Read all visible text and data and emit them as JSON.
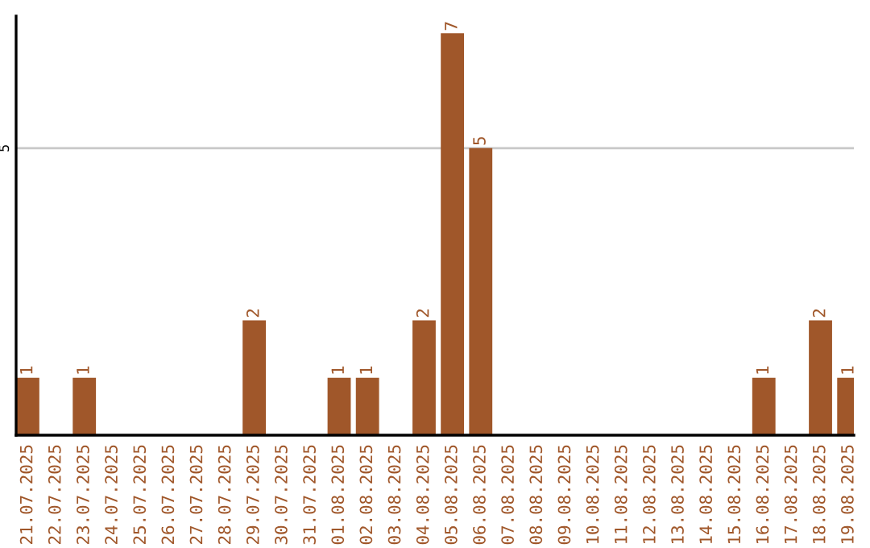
{
  "chart_data": {
    "type": "bar",
    "categories": [
      "21.07.2025",
      "22.07.2025",
      "23.07.2025",
      "24.07.2025",
      "25.07.2025",
      "26.07.2025",
      "27.07.2025",
      "28.07.2025",
      "29.07.2025",
      "30.07.2025",
      "31.07.2025",
      "01.08.2025",
      "02.08.2025",
      "03.08.2025",
      "04.08.2025",
      "05.08.2025",
      "06.08.2025",
      "07.08.2025",
      "08.08.2025",
      "09.08.2025",
      "10.08.2025",
      "11.08.2025",
      "12.08.2025",
      "13.08.2025",
      "14.08.2025",
      "15.08.2025",
      "16.08.2025",
      "17.08.2025",
      "18.08.2025",
      "19.08.2025"
    ],
    "values": [
      1,
      0,
      1,
      0,
      0,
      0,
      0,
      0,
      2,
      0,
      0,
      1,
      1,
      0,
      2,
      7,
      5,
      0,
      0,
      0,
      0,
      0,
      0,
      0,
      0,
      0,
      1,
      0,
      2,
      1
    ],
    "value_labels": [
      "1",
      null,
      "1",
      null,
      null,
      null,
      null,
      null,
      "2",
      null,
      null,
      "1",
      "1",
      null,
      "2",
      "7",
      "5",
      null,
      null,
      null,
      null,
      null,
      null,
      null,
      null,
      null,
      "1",
      null,
      "2",
      "1"
    ],
    "color": "#a0572a",
    "ylim": [
      0,
      7.3
    ],
    "yticks": [
      5
    ],
    "grid": "y"
  }
}
